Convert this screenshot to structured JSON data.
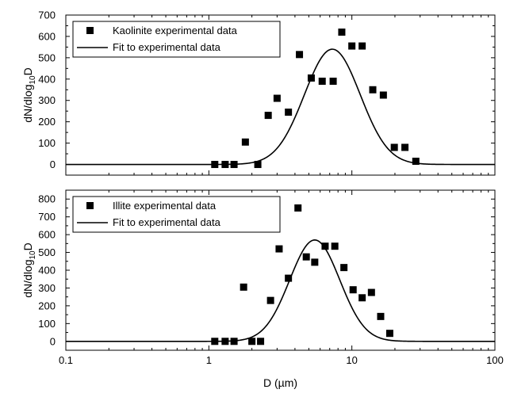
{
  "chart_data": [
    {
      "type": "scatter",
      "id": "kaolinite",
      "ylabel_main": "dN/dlog",
      "ylabel_sub": "10",
      "ylabel_tail": "D",
      "xscale": "log",
      "xlim": [
        0.1,
        100
      ],
      "ylim": [
        -50,
        700
      ],
      "yticks": [
        0,
        100,
        200,
        300,
        400,
        500,
        600,
        700
      ],
      "xtick_labels_shown": false,
      "legend_placement": "top-left",
      "series": [
        {
          "name": "Kaolinite experimental data",
          "kind": "points",
          "x": [
            1.1,
            1.3,
            1.5,
            1.8,
            2.2,
            2.6,
            3.0,
            3.6,
            4.3,
            5.2,
            6.2,
            7.4,
            8.5,
            10.0,
            11.8,
            14.0,
            16.6,
            19.8,
            23.5,
            28.0
          ],
          "y": [
            0,
            0,
            0,
            105,
            0,
            230,
            310,
            245,
            515,
            405,
            390,
            390,
            620,
            555,
            555,
            350,
            325,
            80,
            80,
            15
          ]
        },
        {
          "name": "Fit to experimental data",
          "kind": "line",
          "model": "lognormal",
          "peak_x": 7.3,
          "peak_y": 540,
          "sigma_log10": 0.195
        }
      ]
    },
    {
      "type": "scatter",
      "id": "illite",
      "ylabel_main": "dN/dlog",
      "ylabel_sub": "10",
      "ylabel_tail": "D",
      "xlabel": "D (µm)",
      "xscale": "log",
      "xlim": [
        0.1,
        100
      ],
      "ylim": [
        -50,
        850
      ],
      "yticks": [
        0,
        100,
        200,
        300,
        400,
        500,
        600,
        700,
        800
      ],
      "xticks": [
        0.1,
        1,
        10,
        100
      ],
      "xtick_labels": [
        "0.1",
        "1",
        "10",
        "100"
      ],
      "xtick_labels_shown": true,
      "legend_placement": "top-left",
      "series": [
        {
          "name": "Illite experimental data",
          "kind": "points",
          "x": [
            1.1,
            1.3,
            1.5,
            1.75,
            2.0,
            2.3,
            2.7,
            3.1,
            3.6,
            4.2,
            4.8,
            5.5,
            6.5,
            7.6,
            8.8,
            10.2,
            11.8,
            13.7,
            15.9,
            18.4
          ],
          "y": [
            0,
            0,
            0,
            305,
            0,
            0,
            230,
            520,
            355,
            750,
            475,
            445,
            535,
            535,
            415,
            290,
            245,
            275,
            140,
            45
          ]
        },
        {
          "name": "Fit to experimental data",
          "kind": "line",
          "model": "lognormal",
          "peak_x": 5.5,
          "peak_y": 570,
          "sigma_log10": 0.175
        }
      ]
    }
  ]
}
